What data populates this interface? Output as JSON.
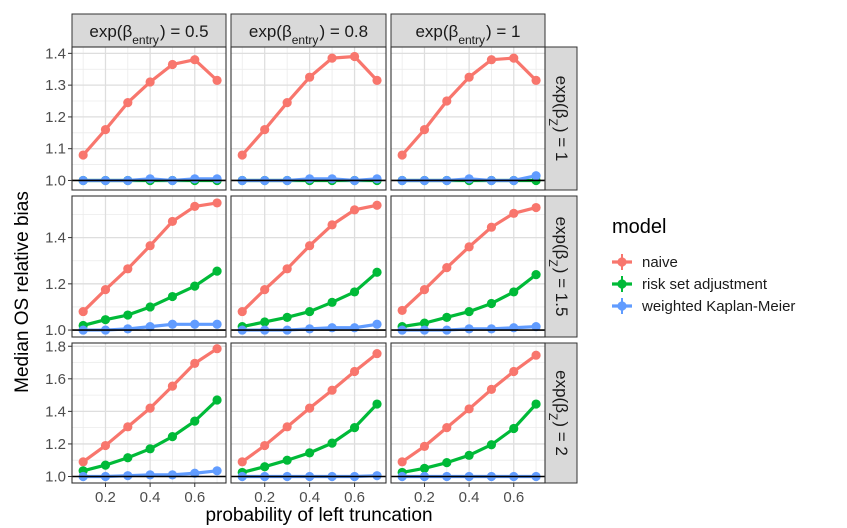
{
  "chart_data": {
    "type": "line",
    "ylabel": "Median OS relative bias",
    "xlabel": "probability of left truncation",
    "reference_line_y": 1.0,
    "x": [
      0.1,
      0.2,
      0.3,
      0.4,
      0.5,
      0.6,
      0.7
    ],
    "x_ticks": [
      0.2,
      0.4,
      0.6
    ],
    "x_tick_labels": [
      "0.2",
      "0.4",
      "0.6"
    ],
    "xlim": [
      0.05,
      0.74
    ],
    "grid": true,
    "legend": {
      "title": "model",
      "placement": "right",
      "entries": [
        {
          "label": "naive",
          "color": "#F8766D"
        },
        {
          "label": "risk set adjustment",
          "color": "#00BA38"
        },
        {
          "label": "weighted Kaplan-Meier",
          "color": "#619CFF"
        }
      ]
    },
    "column_strips": [
      {
        "prefix": "exp(β",
        "sub": "entry",
        "suffix": ") = 0.5"
      },
      {
        "prefix": "exp(β",
        "sub": "entry",
        "suffix": ") = 0.8"
      },
      {
        "prefix": "exp(β",
        "sub": "entry",
        "suffix": ") = 1"
      }
    ],
    "row_strips": [
      {
        "prefix": "exp(β",
        "sub": "Z",
        "suffix": ") = 1"
      },
      {
        "prefix": "exp(β",
        "sub": "Z",
        "suffix": ") = 1.5"
      },
      {
        "prefix": "exp(β",
        "sub": "Z",
        "suffix": ") = 2"
      }
    ],
    "rows": [
      {
        "ylim": [
          0.97,
          1.42
        ],
        "y_ticks": [
          1.0,
          1.1,
          1.2,
          1.3,
          1.4
        ],
        "y_tick_labels": [
          "1.0",
          "1.1",
          "1.2",
          "1.3",
          "1.4"
        ],
        "panels": [
          {
            "series": [
              {
                "name": "naive",
                "values": [
                  1.08,
                  1.16,
                  1.245,
                  1.31,
                  1.365,
                  1.38,
                  1.315
                ]
              },
              {
                "name": "risk set adjustment",
                "values": [
                  1.0,
                  1.0,
                  1.0,
                  1.0,
                  1.0,
                  1.0,
                  1.0
                ]
              },
              {
                "name": "weighted Kaplan-Meier",
                "values": [
                  1.0,
                  1.0,
                  1.0,
                  1.005,
                  1.0,
                  1.005,
                  1.005
                ]
              }
            ]
          },
          {
            "series": [
              {
                "name": "naive",
                "values": [
                  1.08,
                  1.16,
                  1.245,
                  1.325,
                  1.385,
                  1.39,
                  1.315
                ]
              },
              {
                "name": "risk set adjustment",
                "values": [
                  1.0,
                  1.0,
                  1.0,
                  1.0,
                  1.0,
                  1.0,
                  1.0
                ]
              },
              {
                "name": "weighted Kaplan-Meier",
                "values": [
                  1.0,
                  1.0,
                  1.0,
                  1.005,
                  1.005,
                  1.0,
                  1.005
                ]
              }
            ]
          },
          {
            "series": [
              {
                "name": "naive",
                "values": [
                  1.08,
                  1.16,
                  1.25,
                  1.325,
                  1.38,
                  1.385,
                  1.315
                ]
              },
              {
                "name": "risk set adjustment",
                "values": [
                  1.0,
                  1.0,
                  1.0,
                  1.0,
                  1.0,
                  1.0,
                  1.0
                ]
              },
              {
                "name": "weighted Kaplan-Meier",
                "values": [
                  1.0,
                  1.0,
                  1.0,
                  1.005,
                  1.0,
                  1.0,
                  1.015
                ]
              }
            ]
          }
        ]
      },
      {
        "ylim": [
          0.97,
          1.58
        ],
        "y_ticks": [
          1.0,
          1.2,
          1.4
        ],
        "y_tick_labels": [
          "1.0",
          "1.2",
          "1.4"
        ],
        "panels": [
          {
            "series": [
              {
                "name": "naive",
                "values": [
                  1.08,
                  1.175,
                  1.265,
                  1.365,
                  1.47,
                  1.535,
                  1.55
                ]
              },
              {
                "name": "risk set adjustment",
                "values": [
                  1.02,
                  1.045,
                  1.065,
                  1.1,
                  1.145,
                  1.19,
                  1.255
                ]
              },
              {
                "name": "weighted Kaplan-Meier",
                "values": [
                  1.0,
                  1.0,
                  1.005,
                  1.015,
                  1.025,
                  1.025,
                  1.025
                ]
              }
            ]
          },
          {
            "series": [
              {
                "name": "naive",
                "values": [
                  1.08,
                  1.175,
                  1.265,
                  1.365,
                  1.455,
                  1.52,
                  1.54
                ]
              },
              {
                "name": "risk set adjustment",
                "values": [
                  1.015,
                  1.035,
                  1.055,
                  1.08,
                  1.12,
                  1.165,
                  1.25
                ]
              },
              {
                "name": "weighted Kaplan-Meier",
                "values": [
                  1.0,
                  1.0,
                  1.0,
                  1.005,
                  1.01,
                  1.01,
                  1.025
                ]
              }
            ]
          },
          {
            "series": [
              {
                "name": "naive",
                "values": [
                  1.085,
                  1.175,
                  1.27,
                  1.36,
                  1.445,
                  1.505,
                  1.53
                ]
              },
              {
                "name": "risk set adjustment",
                "values": [
                  1.015,
                  1.03,
                  1.055,
                  1.08,
                  1.115,
                  1.165,
                  1.24
                ]
              },
              {
                "name": "weighted Kaplan-Meier",
                "values": [
                  1.0,
                  1.0,
                  1.0,
                  1.005,
                  1.005,
                  1.01,
                  1.015
                ]
              }
            ]
          }
        ]
      },
      {
        "ylim": [
          0.96,
          1.82
        ],
        "y_ticks": [
          1.0,
          1.2,
          1.4,
          1.6,
          1.8
        ],
        "y_tick_labels": [
          "1.0",
          "1.2",
          "1.4",
          "1.6",
          "1.8"
        ],
        "panels": [
          {
            "series": [
              {
                "name": "naive",
                "values": [
                  1.09,
                  1.19,
                  1.305,
                  1.42,
                  1.555,
                  1.695,
                  1.785
                ]
              },
              {
                "name": "risk set adjustment",
                "values": [
                  1.035,
                  1.07,
                  1.115,
                  1.17,
                  1.245,
                  1.34,
                  1.47
                ]
              },
              {
                "name": "weighted Kaplan-Meier",
                "values": [
                  1.0,
                  1.0,
                  1.005,
                  1.01,
                  1.01,
                  1.02,
                  1.035
                ]
              }
            ]
          },
          {
            "series": [
              {
                "name": "naive",
                "values": [
                  1.09,
                  1.19,
                  1.305,
                  1.42,
                  1.53,
                  1.645,
                  1.755
                ]
              },
              {
                "name": "risk set adjustment",
                "values": [
                  1.025,
                  1.06,
                  1.1,
                  1.145,
                  1.205,
                  1.3,
                  1.445
                ]
              },
              {
                "name": "weighted Kaplan-Meier",
                "values": [
                  1.0,
                  1.0,
                  1.0,
                  1.0,
                  1.0,
                  1.0,
                  1.005
                ]
              }
            ]
          },
          {
            "series": [
              {
                "name": "naive",
                "values": [
                  1.09,
                  1.185,
                  1.3,
                  1.415,
                  1.535,
                  1.645,
                  1.745
                ]
              },
              {
                "name": "risk set adjustment",
                "values": [
                  1.025,
                  1.05,
                  1.085,
                  1.13,
                  1.195,
                  1.295,
                  1.445
                ]
              },
              {
                "name": "weighted Kaplan-Meier",
                "values": [
                  1.0,
                  1.0,
                  1.0,
                  1.0,
                  1.0,
                  1.0,
                  1.0
                ]
              }
            ]
          }
        ]
      }
    ]
  }
}
